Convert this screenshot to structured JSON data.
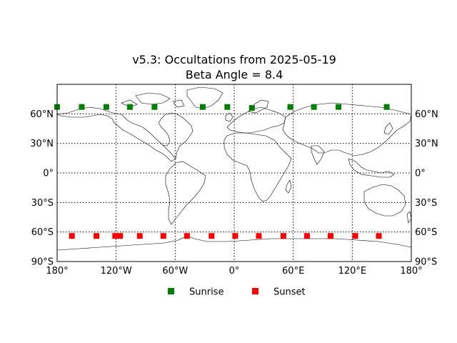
{
  "chart_data": {
    "type": "map",
    "title_line1": "v5.3: Occultations from 2025-05-19",
    "title_line2": "Beta Angle = 8.4",
    "projection": "equirectangular",
    "lon_range": [
      -180,
      180
    ],
    "lat_range": [
      -90,
      90
    ],
    "grid": true,
    "gridline_lons": [
      -120,
      -60,
      0,
      60,
      120
    ],
    "gridline_lats": [
      -60,
      -30,
      0,
      30,
      60
    ],
    "lat_ticks": [
      {
        "value": 60,
        "label": "60°N"
      },
      {
        "value": 30,
        "label": "30°N"
      },
      {
        "value": 0,
        "label": "0°"
      },
      {
        "value": -30,
        "label": "30°S"
      },
      {
        "value": -60,
        "label": "60°S"
      },
      {
        "value": -90,
        "label": "90°S"
      }
    ],
    "lon_ticks": [
      {
        "value": -180,
        "label": "180°"
      },
      {
        "value": -120,
        "label": "120°W"
      },
      {
        "value": -60,
        "label": "60°W"
      },
      {
        "value": 0,
        "label": "0°"
      },
      {
        "value": 60,
        "label": "60°E"
      },
      {
        "value": 120,
        "label": "120°E"
      },
      {
        "value": 180,
        "label": "180°"
      }
    ],
    "legend_position": "bottom-center",
    "series": [
      {
        "name": "Sunrise",
        "color": "#008000",
        "marker": "square",
        "points": [
          {
            "lon": -180,
            "lat": 67
          },
          {
            "lon": -155,
            "lat": 67
          },
          {
            "lon": -130,
            "lat": 67
          },
          {
            "lon": -106,
            "lat": 67
          },
          {
            "lon": -81,
            "lat": 67
          },
          {
            "lon": -32,
            "lat": 67
          },
          {
            "lon": -7,
            "lat": 67
          },
          {
            "lon": 18,
            "lat": 66
          },
          {
            "lon": 57,
            "lat": 67
          },
          {
            "lon": 81,
            "lat": 67
          },
          {
            "lon": 106,
            "lat": 67
          },
          {
            "lon": 155,
            "lat": 67
          }
        ]
      },
      {
        "name": "Sunset",
        "color": "#ff0000",
        "marker": "square",
        "points": [
          {
            "lon": -165,
            "lat": -64
          },
          {
            "lon": -140,
            "lat": -64
          },
          {
            "lon": -121,
            "lat": -64
          },
          {
            "lon": -116,
            "lat": -64
          },
          {
            "lon": -96,
            "lat": -64
          },
          {
            "lon": -72,
            "lat": -64
          },
          {
            "lon": -48,
            "lat": -64
          },
          {
            "lon": -23,
            "lat": -64
          },
          {
            "lon": 1,
            "lat": -64
          },
          {
            "lon": 25,
            "lat": -64
          },
          {
            "lon": 50,
            "lat": -64
          },
          {
            "lon": 74,
            "lat": -64
          },
          {
            "lon": 98,
            "lat": -64
          },
          {
            "lon": 123,
            "lat": -64
          },
          {
            "lon": 147,
            "lat": -64
          }
        ]
      }
    ]
  }
}
